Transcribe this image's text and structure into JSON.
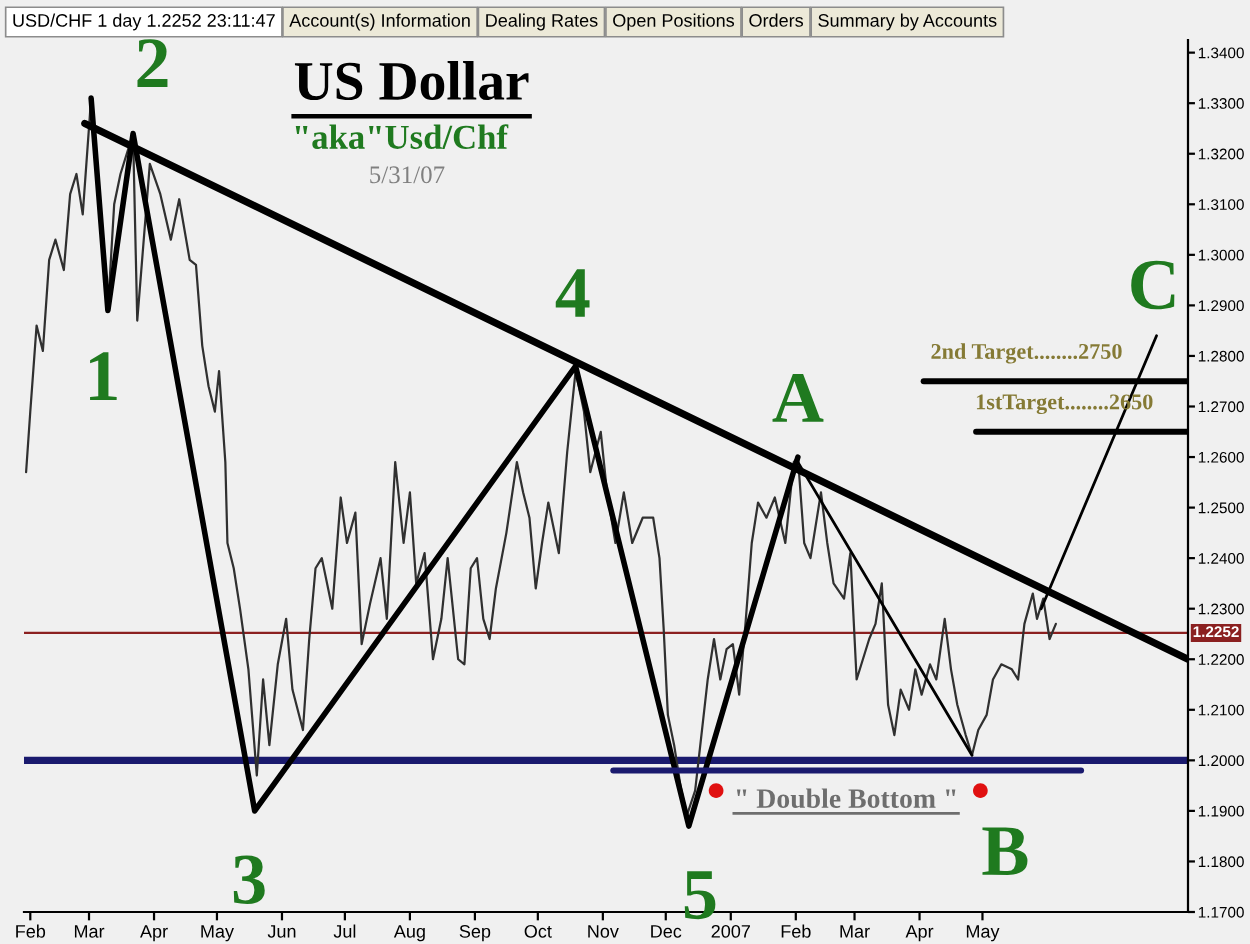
{
  "chart_data": {
    "type": "line",
    "title": "US Dollar",
    "subtitle": "\"aka\"Usd/Chf",
    "xlim": [
      "2006-01-29",
      "2007-08-07"
    ],
    "xticks": [
      {
        "value": "2006-02-01",
        "label": "Feb"
      },
      {
        "value": "2006-03-01",
        "label": "Mar"
      },
      {
        "value": "2006-04-01",
        "label": "Apr"
      },
      {
        "value": "2006-05-01",
        "label": "May"
      },
      {
        "value": "2006-06-01",
        "label": "Jun"
      },
      {
        "value": "2006-07-01",
        "label": "Jul"
      },
      {
        "value": "2006-08-01",
        "label": "Aug"
      },
      {
        "value": "2006-09-01",
        "label": "Sep"
      },
      {
        "value": "2006-10-01",
        "label": "Oct"
      },
      {
        "value": "2006-11-01",
        "label": "Nov"
      },
      {
        "value": "2006-12-01",
        "label": "Dec"
      },
      {
        "value": "2007-01-01",
        "label": "2007"
      },
      {
        "value": "2007-02-01",
        "label": "Feb"
      },
      {
        "value": "2007-03-01",
        "label": "Mar"
      },
      {
        "value": "2007-04-01",
        "label": "Apr"
      },
      {
        "value": "2007-05-01",
        "label": "May"
      }
    ],
    "ylim": [
      1.17,
      1.3425
    ],
    "yticks": [
      {
        "value": 1.17,
        "label": "1.1700"
      },
      {
        "value": 1.18,
        "label": "1.1800"
      },
      {
        "value": 1.19,
        "label": "1.1900"
      },
      {
        "value": 1.2,
        "label": "1.2000"
      },
      {
        "value": 1.21,
        "label": "1.2100"
      },
      {
        "value": 1.22,
        "label": "1.2200"
      },
      {
        "value": 1.23,
        "label": "1.2300"
      },
      {
        "value": 1.24,
        "label": "1.2400"
      },
      {
        "value": 1.25,
        "label": "1.2500"
      },
      {
        "value": 1.26,
        "label": "1.2600"
      },
      {
        "value": 1.27,
        "label": "1.2700"
      },
      {
        "value": 1.28,
        "label": "1.2800"
      },
      {
        "value": 1.29,
        "label": "1.2900"
      },
      {
        "value": 1.3,
        "label": "1.3000"
      },
      {
        "value": 1.31,
        "label": "1.3100"
      },
      {
        "value": 1.32,
        "label": "1.3200"
      },
      {
        "value": 1.33,
        "label": "1.3300"
      },
      {
        "value": 1.34,
        "label": "1.3400"
      }
    ],
    "series": [
      {
        "color": "#303030",
        "x": [
          "2006-01-30",
          "2006-02-01",
          "2006-02-04",
          "2006-02-07",
          "2006-02-10",
          "2006-02-13",
          "2006-02-17",
          "2006-02-20",
          "2006-02-23",
          "2006-02-26",
          "2006-03-02",
          "2006-03-06",
          "2006-03-10",
          "2006-03-13",
          "2006-03-16",
          "2006-03-22",
          "2006-03-24",
          "2006-03-30",
          "2006-04-04",
          "2006-04-09",
          "2006-04-13",
          "2006-04-18",
          "2006-04-21",
          "2006-04-24",
          "2006-04-27",
          "2006-04-30",
          "2006-05-02",
          "2006-05-05",
          "2006-05-06",
          "2006-05-09",
          "2006-05-12",
          "2006-05-16",
          "2006-05-20",
          "2006-05-23",
          "2006-05-26",
          "2006-05-30",
          "2006-06-03",
          "2006-06-06",
          "2006-06-11",
          "2006-06-14",
          "2006-06-17",
          "2006-06-20",
          "2006-06-25",
          "2006-06-29",
          "2006-07-02",
          "2006-07-06",
          "2006-07-09",
          "2006-07-13",
          "2006-07-18",
          "2006-07-21",
          "2006-07-25",
          "2006-07-29",
          "2006-08-01",
          "2006-08-04",
          "2006-08-08",
          "2006-08-12",
          "2006-08-16",
          "2006-08-19",
          "2006-08-24",
          "2006-08-27",
          "2006-08-30",
          "2006-09-02",
          "2006-09-05",
          "2006-09-08",
          "2006-09-11",
          "2006-09-16",
          "2006-09-21",
          "2006-09-24",
          "2006-09-27",
          "2006-09-30",
          "2006-10-03",
          "2006-10-06",
          "2006-10-11",
          "2006-10-15",
          "2006-10-19",
          "2006-10-23",
          "2006-10-26",
          "2006-10-31",
          "2006-11-03",
          "2006-11-07",
          "2006-11-11",
          "2006-11-15",
          "2006-11-20",
          "2006-11-25",
          "2006-11-28",
          "2006-11-30",
          "2006-12-02",
          "2006-12-05",
          "2006-12-08",
          "2006-12-11",
          "2006-12-15",
          "2006-12-18",
          "2006-12-21",
          "2006-12-24",
          "2006-12-27",
          "2006-12-30",
          "2007-01-02",
          "2007-01-05",
          "2007-01-08",
          "2007-01-11",
          "2007-01-14",
          "2007-01-18",
          "2007-01-22",
          "2007-01-27",
          "2007-01-31",
          "2007-02-02",
          "2007-02-05",
          "2007-02-08",
          "2007-02-13",
          "2007-02-16",
          "2007-02-19",
          "2007-02-24",
          "2007-02-27",
          "2007-03-02",
          "2007-03-05",
          "2007-03-08",
          "2007-03-11",
          "2007-03-14",
          "2007-03-17",
          "2007-03-20",
          "2007-03-23",
          "2007-03-27",
          "2007-03-30",
          "2007-04-02",
          "2007-04-06",
          "2007-04-09",
          "2007-04-13",
          "2007-04-16",
          "2007-04-19",
          "2007-04-23",
          "2007-04-26",
          "2007-04-29",
          "2007-05-03",
          "2007-05-06",
          "2007-05-10",
          "2007-05-15",
          "2007-05-18",
          "2007-05-21",
          "2007-05-25",
          "2007-05-27",
          "2007-05-30",
          "2007-06-02",
          "2007-06-05"
        ],
        "values": [
          1.257,
          1.269,
          1.286,
          1.281,
          1.299,
          1.303,
          1.297,
          1.312,
          1.316,
          1.308,
          1.331,
          1.308,
          1.289,
          1.31,
          1.316,
          1.324,
          1.287,
          1.318,
          1.312,
          1.303,
          1.311,
          1.299,
          1.298,
          1.282,
          1.274,
          1.269,
          1.277,
          1.259,
          1.243,
          1.238,
          1.23,
          1.218,
          1.197,
          1.216,
          1.203,
          1.219,
          1.228,
          1.214,
          1.206,
          1.224,
          1.238,
          1.24,
          1.23,
          1.252,
          1.243,
          1.249,
          1.223,
          1.231,
          1.24,
          1.228,
          1.259,
          1.243,
          1.253,
          1.235,
          1.241,
          1.22,
          1.228,
          1.24,
          1.22,
          1.219,
          1.238,
          1.24,
          1.228,
          1.224,
          1.234,
          1.245,
          1.259,
          1.253,
          1.248,
          1.234,
          1.243,
          1.251,
          1.241,
          1.261,
          1.277,
          1.269,
          1.257,
          1.265,
          1.253,
          1.243,
          1.253,
          1.243,
          1.248,
          1.248,
          1.24,
          1.226,
          1.209,
          1.203,
          1.195,
          1.189,
          1.194,
          1.205,
          1.216,
          1.224,
          1.216,
          1.222,
          1.223,
          1.213,
          1.227,
          1.243,
          1.251,
          1.248,
          1.252,
          1.243,
          1.259,
          1.26,
          1.243,
          1.24,
          1.253,
          1.243,
          1.235,
          1.232,
          1.241,
          1.216,
          1.22,
          1.224,
          1.227,
          1.235,
          1.211,
          1.205,
          1.214,
          1.21,
          1.218,
          1.213,
          1.219,
          1.216,
          1.228,
          1.218,
          1.211,
          1.205,
          1.201,
          1.206,
          1.209,
          1.216,
          1.219,
          1.218,
          1.216,
          1.227,
          1.233,
          1.228,
          1.232,
          1.224,
          1.227
        ]
      },
      {
        "color": "#000000",
        "x": [
          "2006-02-27",
          "2007-08-07"
        ],
        "values": [
          1.326,
          1.22
        ]
      },
      {
        "color": "#000000",
        "x": [
          "2006-03-02",
          "2006-03-10",
          "2006-03-22",
          "2006-05-19",
          "2006-10-19",
          "2006-12-12",
          "2007-02-02"
        ],
        "values": [
          1.331,
          1.289,
          1.324,
          1.19,
          1.278,
          1.187,
          1.26
        ]
      },
      {
        "color": "#000000",
        "x": [
          "2007-02-02",
          "2007-04-26"
        ],
        "values": [
          1.259,
          1.201
        ]
      },
      {
        "color": "#000000",
        "x": [
          "2007-05-29",
          "2007-07-23"
        ],
        "values": [
          1.23,
          1.284
        ]
      },
      {
        "color": "#000000",
        "x": [
          "2007-04-03",
          "2007-08-07"
        ],
        "values": [
          1.275,
          1.275
        ]
      },
      {
        "color": "#000000",
        "x": [
          "2007-04-28",
          "2007-08-07"
        ],
        "values": [
          1.265,
          1.265
        ]
      },
      {
        "color": "#1a1a6e",
        "x": [
          "2006-11-06",
          "2007-06-17"
        ],
        "values": [
          1.198,
          1.198
        ]
      },
      {
        "type": "scatter",
        "color": "#e01010",
        "x": [
          "2006-12-25",
          "2007-04-30"
        ],
        "values": [
          1.194,
          1.194
        ]
      }
    ],
    "ref_lines": [
      {
        "axis": "y",
        "value": 1.2,
        "color": "#1a1a6e"
      },
      {
        "axis": "y",
        "value": 1.2252,
        "label": "1.2252",
        "color": "#8b2020"
      }
    ],
    "annotations": [
      "USD/CHF 1 day 1.2252 23:11:47",
      "Account(s) Information",
      "Dealing Rates",
      "Open Positions",
      "Orders",
      "Summary by Accounts",
      "5/31/07",
      {
        "text": "1",
        "x": "2006-03-10",
        "y": 1.289
      },
      {
        "text": "2",
        "x": "2006-03-22",
        "y": 1.324
      },
      {
        "text": "3",
        "x": "2006-05-19",
        "y": 1.19
      },
      {
        "text": "4",
        "x": "2006-10-19",
        "y": 1.278
      },
      {
        "text": "5",
        "x": "2006-12-12",
        "y": 1.187
      },
      {
        "text": "A",
        "x": "2007-02-02",
        "y": 1.26
      },
      {
        "text": "B",
        "x": "2007-04-30",
        "y": 1.194
      },
      {
        "text": "C",
        "x": "2007-07-23",
        "y": 1.284
      },
      {
        "text": "2nd Target........2750",
        "x": "2007-05-22",
        "y": 1.275
      },
      {
        "text": "1stTarget........2650",
        "x": "2007-06-09",
        "y": 1.265
      },
      {
        "text": "\" Double Bottom \"",
        "x": "2007-02-25",
        "y": 1.198
      }
    ]
  }
}
